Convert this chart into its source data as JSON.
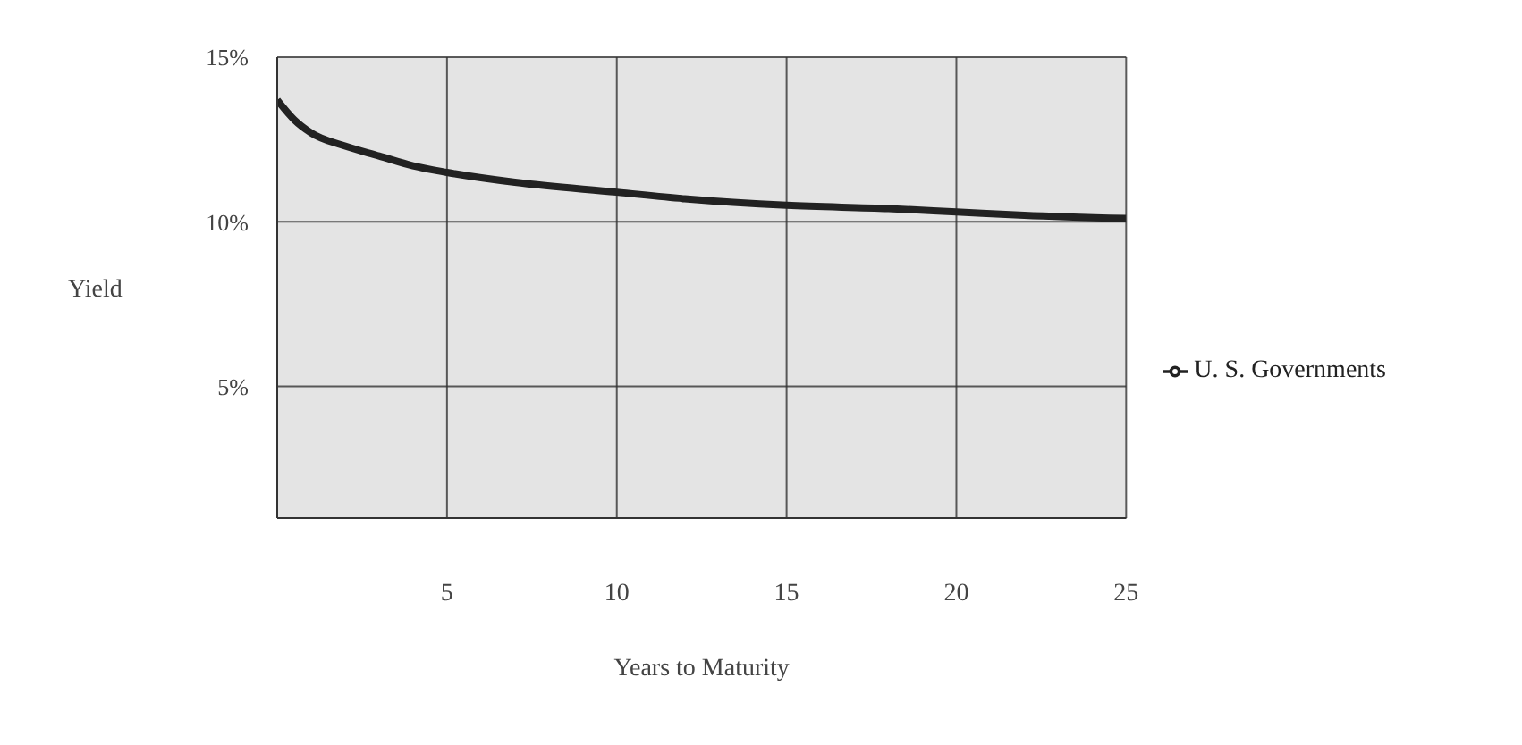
{
  "chart_data": {
    "type": "line",
    "xlabel": "Years to Maturity",
    "ylabel": "Yield",
    "x": [
      0,
      0.5,
      1,
      2,
      3,
      4,
      5,
      7,
      10,
      12,
      15,
      18,
      20,
      22,
      25
    ],
    "series": [
      {
        "name": "U. S. Governments",
        "color": "#222222",
        "values": [
          13.7,
          13.1,
          12.7,
          12.3,
          12,
          11.7,
          11.5,
          11.2,
          10.9,
          10.7,
          10.5,
          10.4,
          10.3,
          10.2,
          10.1
        ]
      }
    ],
    "xlim": [
      0,
      25
    ],
    "xticks": [
      5,
      10,
      15,
      20,
      25
    ],
    "ylim": [
      1,
      15
    ],
    "yticks": [
      {
        "value": 5,
        "label": "5%"
      },
      {
        "value": 10,
        "label": "10%"
      },
      {
        "value": 15,
        "label": "15%"
      }
    ],
    "grid": true,
    "legend": "right",
    "marker": "none",
    "line_style": "solid"
  }
}
